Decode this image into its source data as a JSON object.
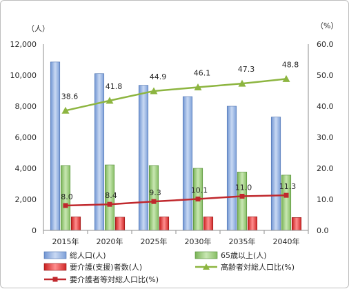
{
  "chart_data": {
    "type": "bar",
    "title": "",
    "left_axis": {
      "unit": "（人）",
      "min": 0,
      "max": 12000,
      "ticks": [
        "0",
        "2,000",
        "4,000",
        "6,000",
        "8,000",
        "10,000",
        "12,000"
      ]
    },
    "right_axis": {
      "unit": "（%）",
      "min": 0,
      "max": 60,
      "ticks": [
        "0.0",
        "10.0",
        "20.0",
        "30.0",
        "40.0",
        "50.0",
        "60.0"
      ]
    },
    "categories": [
      "2015年",
      "2020年",
      "2025年",
      "2030年",
      "2035年",
      "2040年"
    ],
    "series": [
      {
        "name": "総人口(人)",
        "kind": "bar",
        "axis": "left",
        "color": "#8eaee0",
        "values": [
          10850,
          10100,
          9350,
          8620,
          8000,
          7300
        ]
      },
      {
        "name": "65歳以上(人)",
        "kind": "bar",
        "axis": "left",
        "color": "#9bcf7d",
        "values": [
          4180,
          4220,
          4180,
          4000,
          3760,
          3560
        ]
      },
      {
        "name": "要介護(支援)者数(人)",
        "kind": "bar",
        "axis": "left",
        "color": "#e03030",
        "values": [
          870,
          850,
          870,
          870,
          880,
          830
        ]
      },
      {
        "name": "高齢者対総人口比(%)",
        "kind": "line",
        "axis": "right",
        "color": "#8db540",
        "marker": "triangle",
        "values": [
          38.6,
          41.8,
          44.9,
          46.1,
          47.3,
          48.8
        ],
        "labels": [
          "38.6",
          "41.8",
          "44.9",
          "46.1",
          "47.3",
          "48.8"
        ]
      },
      {
        "name": "要介護者等対総人口比(%)",
        "kind": "line",
        "axis": "right",
        "color": "#c0282d",
        "marker": "square",
        "values": [
          8.0,
          8.4,
          9.3,
          10.1,
          11.0,
          11.3
        ],
        "labels": [
          "8.0",
          "8.4",
          "9.3",
          "10.1",
          "11.0",
          "11.3"
        ]
      }
    ],
    "grid": false,
    "legend_position": "bottom"
  }
}
